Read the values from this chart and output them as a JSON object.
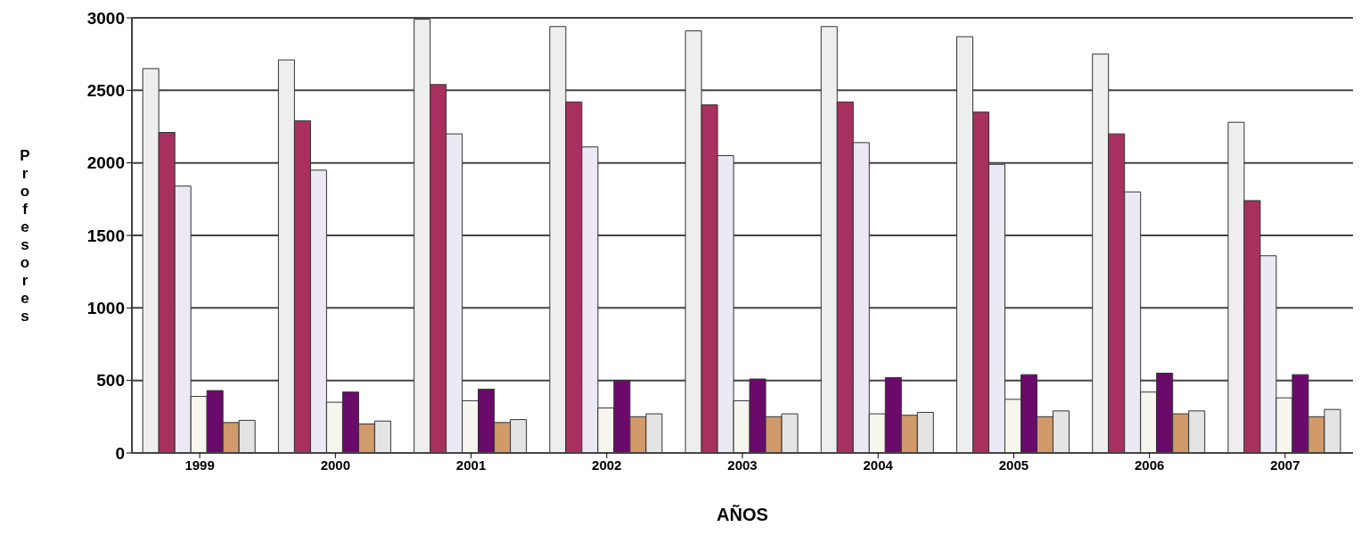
{
  "chart_data": {
    "type": "bar",
    "xlabel": "AÑOS",
    "ylabel": "Profesores",
    "categories": [
      "1999",
      "2000",
      "2001",
      "2002",
      "2003",
      "2004",
      "2005",
      "2006",
      "2007"
    ],
    "series": [
      {
        "color": "#eeeeee",
        "values": [
          2650,
          2710,
          2990,
          2940,
          2910,
          2940,
          2870,
          2750,
          2280
        ]
      },
      {
        "color": "#a8305f",
        "values": [
          2210,
          2290,
          2540,
          2420,
          2400,
          2420,
          2350,
          2200,
          1740
        ]
      },
      {
        "color": "#ece8f4",
        "values": [
          1840,
          1950,
          2200,
          2110,
          2050,
          2140,
          1990,
          1800,
          1360
        ]
      },
      {
        "color": "#f6f6ee",
        "values": [
          390,
          350,
          360,
          310,
          360,
          270,
          370,
          420,
          380
        ]
      },
      {
        "color": "#6a0a6a",
        "values": [
          430,
          420,
          440,
          500,
          510,
          520,
          540,
          550,
          540
        ]
      },
      {
        "color": "#d09a6a",
        "values": [
          210,
          200,
          210,
          250,
          250,
          260,
          250,
          270,
          250
        ]
      },
      {
        "color": "#e4e4e4",
        "values": [
          225,
          220,
          230,
          270,
          270,
          280,
          290,
          290,
          300
        ]
      }
    ],
    "ylim": [
      0,
      3000
    ],
    "yticks": [
      0,
      500,
      1000,
      1500,
      2000,
      2500,
      3000
    ],
    "grid": "y",
    "legend": false
  }
}
